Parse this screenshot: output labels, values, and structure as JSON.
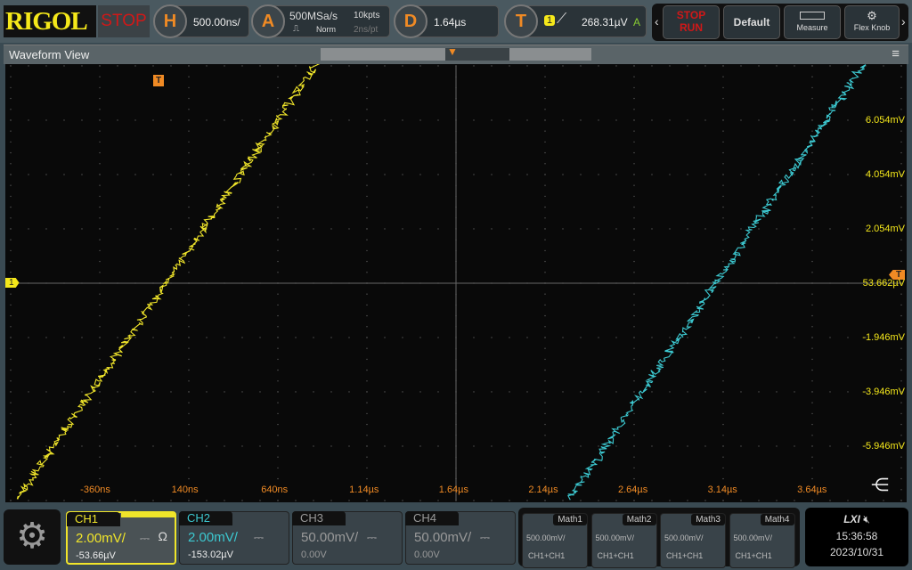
{
  "header": {
    "brand": "RIGOL",
    "run_state": "STOP",
    "h_label": "H",
    "timebase": "500.00ns/",
    "a_label": "A",
    "sample_rate": "500MSa/s",
    "acq_mode": "Norm",
    "mem_depth": "10kpts",
    "sample_interval": "2ns/pt",
    "d_label": "D",
    "delay": "1.64µs",
    "t_label": "T",
    "trigger_source": "1",
    "trigger_level": "268.31µV",
    "trigger_mode": "A",
    "stop_run_top": "STOP",
    "stop_run_bottom": "RUN",
    "default_label": "Default",
    "measure_label": "Measure",
    "flexknob_label": "Flex Knob"
  },
  "waveform_view": {
    "title": "Waveform View",
    "trigger_marker": "T",
    "ch1_marker": "1",
    "right_trigger_marker": "T",
    "time_labels": [
      "-360ns",
      "140ns",
      "640ns",
      "1.14µs",
      "1.64µs",
      "2.14µs",
      "2.64µs",
      "3.14µs",
      "3.64µs"
    ],
    "volt_labels": [
      "6.054mV",
      "4.054mV",
      "2.054mV",
      "53.662µV",
      "-1.946mV",
      "-3.946mV",
      "-5.946mV"
    ]
  },
  "colors": {
    "ch1": "#f0e52a",
    "ch2": "#3cc8d0",
    "accent": "#f08a24",
    "stop": "#d01818"
  },
  "channels": [
    {
      "name": "CH1",
      "scale": "2.00mV/",
      "offset": "-53.66µV",
      "coupling": "⎓",
      "impedance": "Ω",
      "active": true
    },
    {
      "name": "CH2",
      "scale": "2.00mV/",
      "offset": "-153.02µV",
      "coupling": "⎓"
    },
    {
      "name": "CH3",
      "scale": "50.00mV/",
      "offset": "0.00V",
      "coupling": "⎓"
    },
    {
      "name": "CH4",
      "scale": "50.00mV/",
      "offset": "0.00V",
      "coupling": "⎓"
    }
  ],
  "math": [
    {
      "name": "Math1",
      "scale": "500.00mV/",
      "expr": "CH1+CH1"
    },
    {
      "name": "Math2",
      "scale": "500.00mV/",
      "expr": "CH1+CH1"
    },
    {
      "name": "Math3",
      "scale": "500.00mV/",
      "expr": "CH1+CH1"
    },
    {
      "name": "Math4",
      "scale": "500.00mV/",
      "expr": "CH1+CH1"
    }
  ],
  "status": {
    "lxi": "LXI",
    "time": "15:36:58",
    "date": "2023/10/31"
  }
}
